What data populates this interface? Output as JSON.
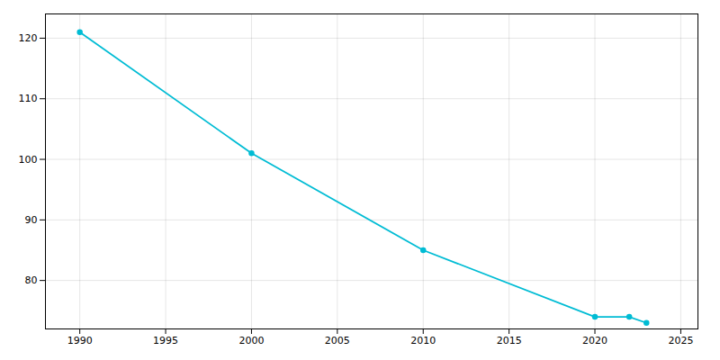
{
  "chart_data": {
    "type": "line",
    "x": [
      1990,
      2000,
      2010,
      2020,
      2022,
      2023
    ],
    "values": [
      121,
      101,
      85,
      74,
      74,
      73
    ],
    "color": "#00bcd4",
    "marker": "circle",
    "xlim": [
      1988,
      2026
    ],
    "xticks": [
      1990,
      1995,
      2000,
      2005,
      2010,
      2015,
      2020,
      2025
    ],
    "ylim": [
      72,
      124
    ],
    "yticks": [
      80,
      90,
      100,
      110,
      120
    ],
    "grid": true
  }
}
